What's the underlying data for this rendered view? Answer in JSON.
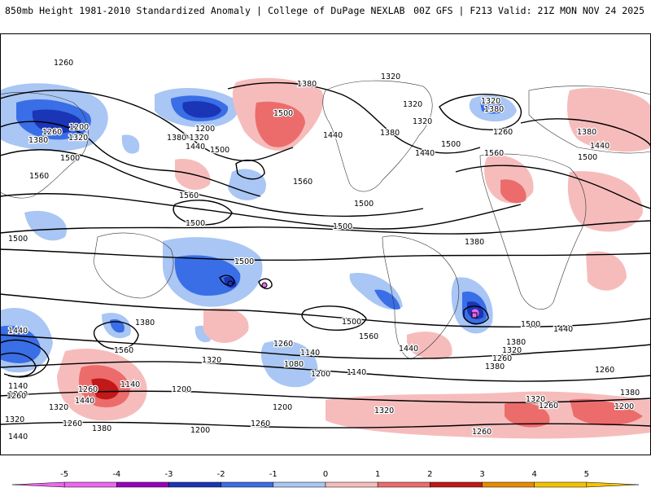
{
  "header": {
    "title_left": "850mb Height 1981-2010 Standardized Anomaly | College of DuPage NEXLAB",
    "title_right": "00Z GFS | F213 Valid: 21Z MON NOV 24 2025"
  },
  "colorbar": {
    "ticks": [
      "-5",
      "-4",
      "-3",
      "-2",
      "-1",
      "0",
      "1",
      "2",
      "3",
      "4",
      "5"
    ],
    "colors": [
      "#ee66ee",
      "#9900bb",
      "#1a35b5",
      "#3a6ee6",
      "#a9c6f4",
      "#ffffff",
      "#f6bcbc",
      "#ec6c6c",
      "#c21818",
      "#e98a00",
      "#f6c200"
    ]
  },
  "map": {
    "contour_labels": [
      {
        "id": "c1",
        "text": "1260"
      },
      {
        "id": "c2",
        "text": "1380"
      },
      {
        "id": "c3",
        "text": "1320"
      },
      {
        "id": "c4",
        "text": "1200"
      },
      {
        "id": "c5",
        "text": "1260"
      },
      {
        "id": "c6",
        "text": "1320"
      },
      {
        "id": "c7",
        "text": "1380"
      },
      {
        "id": "c8",
        "text": "1500"
      },
      {
        "id": "c9",
        "text": "1560"
      },
      {
        "id": "c10",
        "text": "1200"
      },
      {
        "id": "c11",
        "text": "1380-1320"
      },
      {
        "id": "c12",
        "text": "1440"
      },
      {
        "id": "c13",
        "text": "1500"
      },
      {
        "id": "c14",
        "text": "1560"
      },
      {
        "id": "c15",
        "text": "1380"
      },
      {
        "id": "c16",
        "text": "1500"
      },
      {
        "id": "c17",
        "text": "1440"
      },
      {
        "id": "c18",
        "text": "1560"
      },
      {
        "id": "c19",
        "text": "1320"
      },
      {
        "id": "c20",
        "text": "1380"
      },
      {
        "id": "c21",
        "text": "1320"
      },
      {
        "id": "c22",
        "text": "1440"
      },
      {
        "id": "c23",
        "text": "1500"
      },
      {
        "id": "c24",
        "text": "1320"
      },
      {
        "id": "c25",
        "text": "1260"
      },
      {
        "id": "c26",
        "text": "1560"
      },
      {
        "id": "c27",
        "text": "1380"
      },
      {
        "id": "c28",
        "text": "1440"
      },
      {
        "id": "c29",
        "text": "1500"
      },
      {
        "id": "c30",
        "text": "1500"
      },
      {
        "id": "c31",
        "text": "1500"
      },
      {
        "id": "c32",
        "text": "1500"
      },
      {
        "id": "c33",
        "text": "1500"
      },
      {
        "id": "c34",
        "text": "1500"
      },
      {
        "id": "c35",
        "text": "1380"
      },
      {
        "id": "c36",
        "text": "1440"
      },
      {
        "id": "c37",
        "text": "1380"
      },
      {
        "id": "c38",
        "text": "1560"
      },
      {
        "id": "c39",
        "text": "1500"
      },
      {
        "id": "c40",
        "text": "1560"
      },
      {
        "id": "c41",
        "text": "1500"
      },
      {
        "id": "c42",
        "text": "1440"
      },
      {
        "id": "c43",
        "text": "1440"
      },
      {
        "id": "c44",
        "text": "1380"
      },
      {
        "id": "c45",
        "text": "1320"
      },
      {
        "id": "c46",
        "text": "1260"
      },
      {
        "id": "c47",
        "text": "1380"
      },
      {
        "id": "c48",
        "text": "1320"
      },
      {
        "id": "c49",
        "text": "1260"
      },
      {
        "id": "c50",
        "text": "1140"
      },
      {
        "id": "c51",
        "text": "1080"
      },
      {
        "id": "c52",
        "text": "1200"
      },
      {
        "id": "c53",
        "text": "1140"
      },
      {
        "id": "c54",
        "text": "1200"
      },
      {
        "id": "c55",
        "text": "1140"
      },
      {
        "id": "c56",
        "text": "1200"
      },
      {
        "id": "c57",
        "text": "1140"
      },
      {
        "id": "c58",
        "text": "1200"
      },
      {
        "id": "c59",
        "text": "1260"
      },
      {
        "id": "c60",
        "text": "1320"
      },
      {
        "id": "c61",
        "text": "1440"
      },
      {
        "id": "c62",
        "text": "1320"
      },
      {
        "id": "c63",
        "text": "1260"
      },
      {
        "id": "c64",
        "text": "1380"
      },
      {
        "id": "c65",
        "text": "1260"
      },
      {
        "id": "c66",
        "text": "1200"
      },
      {
        "id": "c67",
        "text": "1260"
      },
      {
        "id": "c68",
        "text": "1320"
      },
      {
        "id": "c69",
        "text": "1260"
      },
      {
        "id": "c70",
        "text": "1320"
      },
      {
        "id": "c71",
        "text": "1380"
      },
      {
        "id": "c72",
        "text": "1200"
      },
      {
        "id": "c73",
        "text": "1260"
      },
      {
        "id": "c74",
        "text": "1260"
      },
      {
        "id": "c75",
        "text": "1440"
      }
    ]
  }
}
